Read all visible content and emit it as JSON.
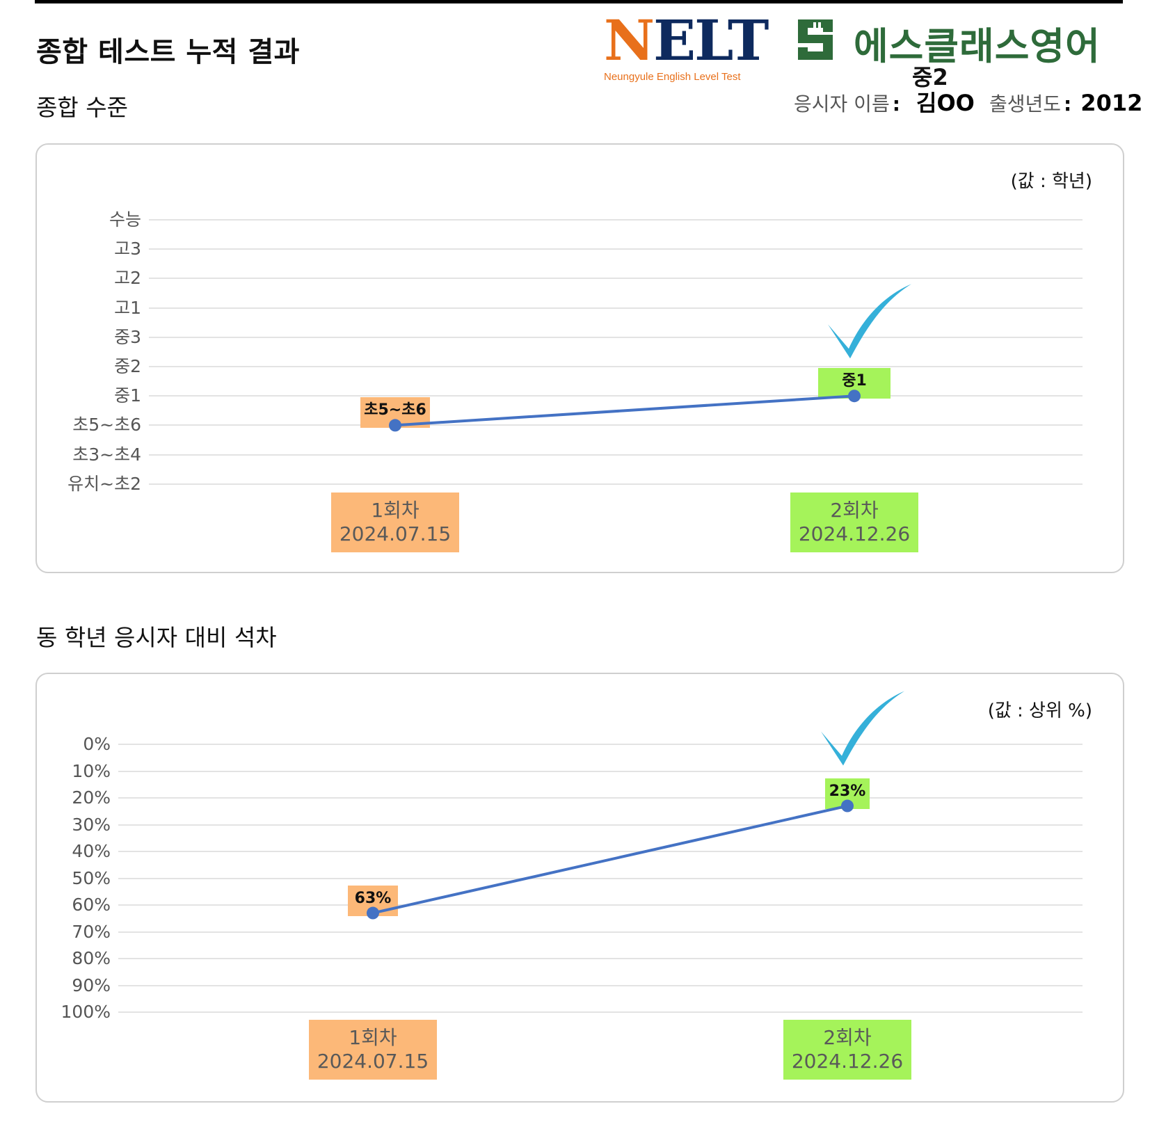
{
  "page_title": "종합 테스트 누적 결과",
  "logos": {
    "nelt_text": "NELT",
    "nelt_tagline": "Neungyule English Level Test",
    "sclass_name": "에스클래스영어"
  },
  "examinee": {
    "grade": "중2",
    "name_label": "응시자 이름",
    "name_value": "김OO",
    "birth_label": "출생년도",
    "birth_value": "2012"
  },
  "colors": {
    "line": "#4472c4",
    "point": "#4472c4",
    "session1_box": "#fcb878",
    "session2_box": "#a5f35a",
    "check": "#35b0d9"
  },
  "chart_data": [
    {
      "type": "line",
      "section_title": "종합 수준",
      "unit_label": "(값 : 학년)",
      "y_levels": [
        "수능",
        "고3",
        "고2",
        "고1",
        "중3",
        "중2",
        "중1",
        "초5~초6",
        "초3~초4",
        "유치~초2"
      ],
      "categories": [
        {
          "label": "1회차",
          "date": "2024.07.15"
        },
        {
          "label": "2회차",
          "date": "2024.12.26"
        }
      ],
      "values": [
        "초5~초6",
        "중1"
      ],
      "data_labels": [
        "초5~초6",
        "중1"
      ],
      "grid": true,
      "marker_on_last": "check"
    },
    {
      "type": "line",
      "section_title": "동 학년 응시자 대비 석차",
      "unit_label": "(값 : 상위 %)",
      "y_ticks": [
        "0%",
        "10%",
        "20%",
        "30%",
        "40%",
        "50%",
        "60%",
        "70%",
        "80%",
        "90%",
        "100%"
      ],
      "ylim": [
        0,
        100
      ],
      "y_inverted": true,
      "categories": [
        {
          "label": "1회차",
          "date": "2024.07.15"
        },
        {
          "label": "2회차",
          "date": "2024.12.26"
        }
      ],
      "values": [
        63,
        23
      ],
      "data_labels": [
        "63%",
        "23%"
      ],
      "grid": true,
      "marker_on_last": "check"
    }
  ]
}
